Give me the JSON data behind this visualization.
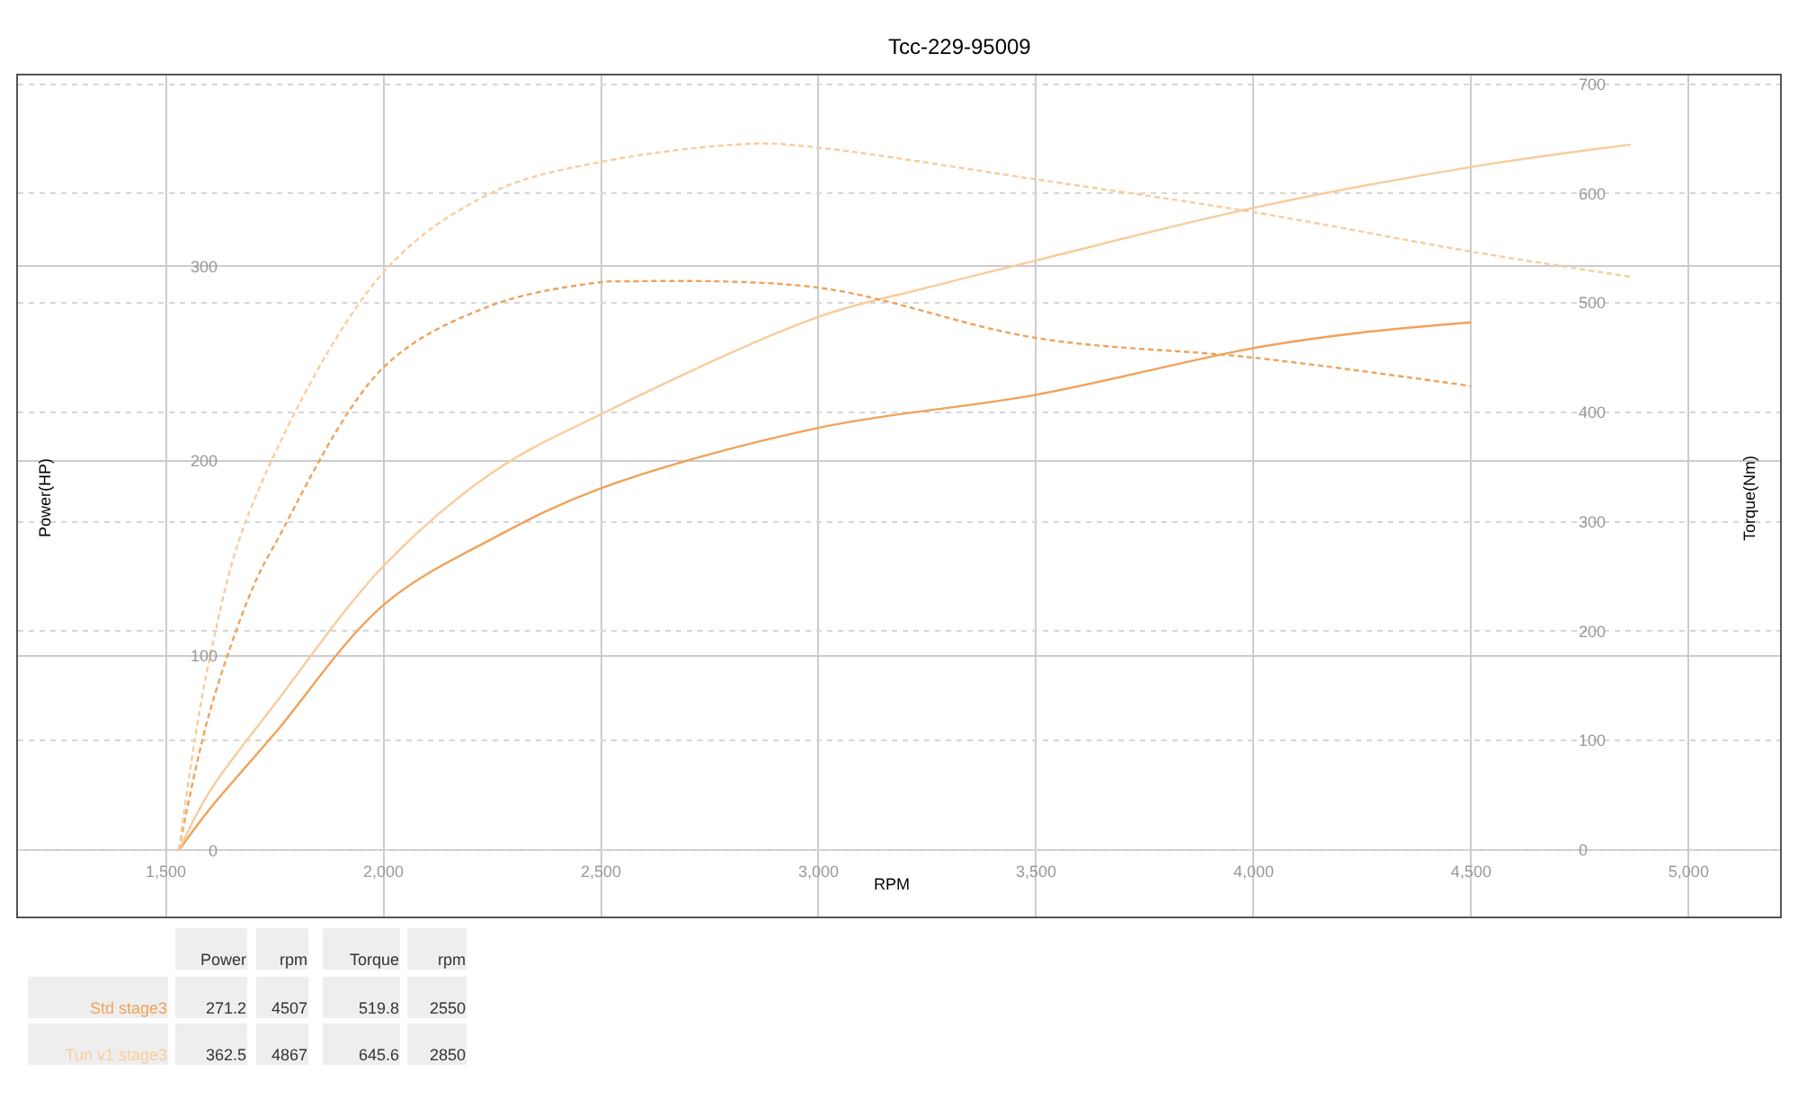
{
  "chart_data": {
    "type": "line",
    "title": "Tcc-229-95009",
    "xlabel": "RPM",
    "ylabel": "Power(HP)",
    "y2label": "Torque(Nm)",
    "xlim": [
      1160,
      5210
    ],
    "xticks": [
      {
        "value": 1500,
        "label": "1,500"
      },
      {
        "value": 2000,
        "label": "2,000"
      },
      {
        "value": 2500,
        "label": "2,500"
      },
      {
        "value": 3000,
        "label": "3,000"
      },
      {
        "value": 3500,
        "label": "3,500"
      },
      {
        "value": 4000,
        "label": "4,000"
      },
      {
        "value": 4500,
        "label": "4,500"
      },
      {
        "value": 5000,
        "label": "5,000"
      }
    ],
    "ylim": [
      -34,
      398
    ],
    "yticks": [
      0,
      100,
      200,
      300
    ],
    "y2lim": [
      -61,
      708
    ],
    "y2ticks": [
      0,
      100,
      200,
      300,
      400,
      500,
      600,
      700
    ],
    "grid": true,
    "legend": false,
    "marker": "none",
    "series": [
      {
        "name": "Std stage3",
        "color": "#f0a25a",
        "line_style": "solid",
        "x": [
          1530,
          1600,
          1750,
          2000,
          2250,
          2500,
          3000,
          3500,
          4000,
          4250,
          4500
        ],
        "values": [
          0,
          21,
          60,
          126,
          160,
          186,
          217,
          234,
          258,
          266,
          271.2
        ]
      },
      {
        "color": "#f0a25a",
        "line_style": "dashed",
        "axis": "y2",
        "x": [
          1530,
          1600,
          1700,
          1750,
          2000,
          2250,
          2500,
          2550,
          3000,
          3500,
          4000,
          4500
        ],
        "values": [
          0,
          125,
          240,
          279,
          441,
          498,
          519,
          519.8,
          514,
          468,
          450,
          424
        ]
      },
      {
        "name": "Tun v1 stage3",
        "color": "#f8cc9c",
        "line_style": "solid",
        "x": [
          1530,
          1600,
          1750,
          2000,
          2250,
          2500,
          3000,
          3250,
          3500,
          4000,
          4500,
          4867
        ],
        "values": [
          0,
          30,
          75,
          146,
          194,
          224,
          274,
          289,
          303,
          330,
          351,
          362.5
        ]
      },
      {
        "color": "#f8cc9c",
        "line_style": "dashed",
        "axis": "y2",
        "x": [
          1530,
          1600,
          1700,
          2000,
          2250,
          2500,
          2850,
          3000,
          3500,
          4000,
          4500,
          4867
        ],
        "values": [
          0,
          174,
          317,
          528,
          601,
          629,
          645.6,
          642,
          613,
          583,
          547,
          524
        ]
      }
    ],
    "annotations": [
      "Power",
      "rpm",
      "Torque",
      "rpm",
      "271.2",
      "4507",
      "519.8",
      "2550",
      "362.5",
      "4867",
      "645.6",
      "2850"
    ]
  }
}
